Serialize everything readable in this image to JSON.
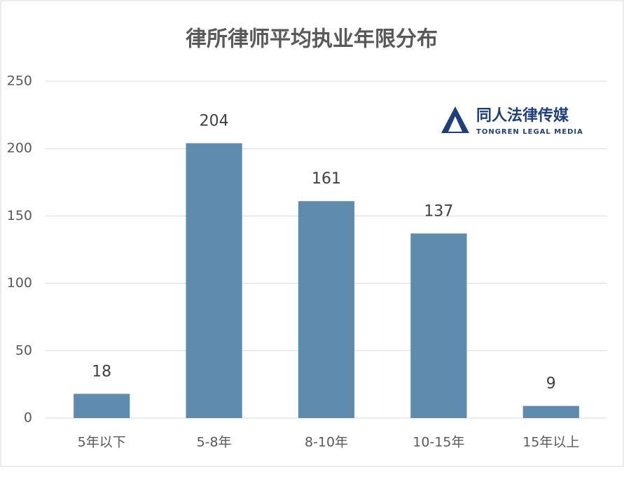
{
  "chart_data": {
    "type": "bar",
    "title": "律所律师平均执业年限分布",
    "categories": [
      "5年以下",
      "5-8年",
      "8-10年",
      "10-15年",
      "15年以上"
    ],
    "values": [
      18,
      204,
      161,
      137,
      9
    ],
    "color": "#5f8bae",
    "ylim": [
      0,
      250
    ],
    "yticks": [
      0,
      50,
      100,
      150,
      200,
      250
    ],
    "grid": true,
    "logo": {
      "name": "同人法律传媒",
      "subtitle": "TONGREN LEGAL MEDIA"
    }
  }
}
